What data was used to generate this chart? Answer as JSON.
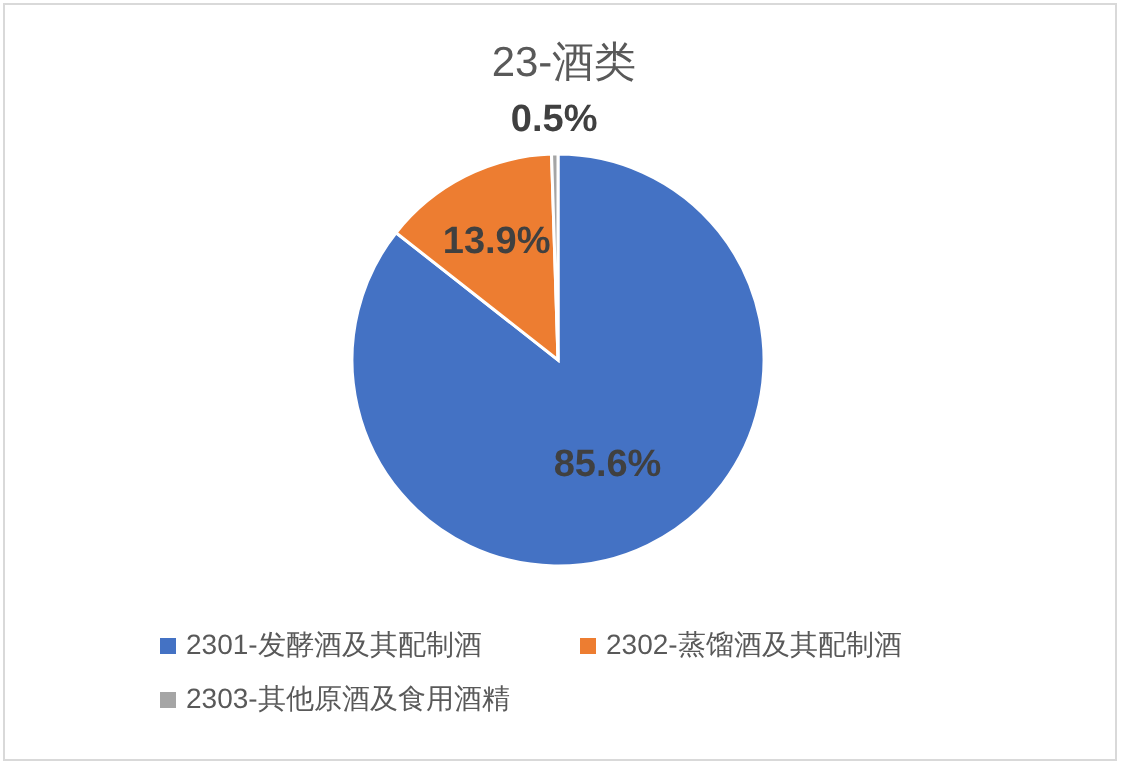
{
  "chart_data": {
    "type": "pie",
    "title": "23-酒类",
    "categories": [
      "2301-发酵酒及其配制酒",
      "2302-蒸馏酒及其配制酒",
      "2303-其他原酒及食用酒精"
    ],
    "values": [
      85.6,
      13.9,
      0.5
    ],
    "colors": [
      "#4472c4",
      "#ed7d31",
      "#a5a5a5"
    ],
    "value_labels": [
      "85.6%",
      "13.9%",
      "0.5%"
    ],
    "legend": "bottom"
  }
}
